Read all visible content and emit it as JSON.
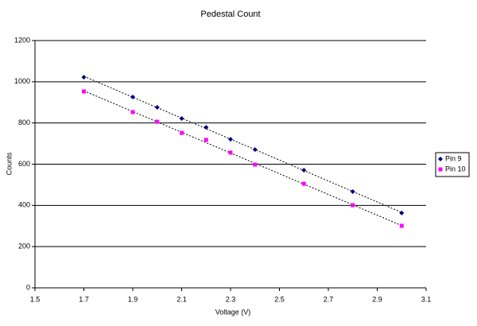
{
  "chart_data": {
    "type": "scatter",
    "title": "Pedestal Count",
    "x_label": "Voltage (V)",
    "y_label": "Counts",
    "xlim": [
      1.5,
      3.1
    ],
    "xticks": [
      1.5,
      1.7,
      1.9,
      2.1,
      2.3,
      2.5,
      2.7,
      2.9,
      3.1
    ],
    "ylim": [
      0,
      1200
    ],
    "yticks": [
      0,
      200,
      400,
      600,
      800,
      1000,
      1200
    ],
    "grid": true,
    "trendline": true,
    "legend": "right",
    "series": [
      {
        "name": "Pin 9",
        "color": "#000080",
        "marker": "diamond",
        "x": [
          1.7,
          1.9,
          2.0,
          2.1,
          2.2,
          2.3,
          2.4,
          2.6,
          2.8,
          3.0
        ],
        "values": [
          1022,
          926,
          876,
          822,
          779,
          721,
          671,
          571,
          467,
          363
        ]
      },
      {
        "name": "Pin 10",
        "color": "#ff00ff",
        "marker": "square",
        "x": [
          1.7,
          1.9,
          2.0,
          2.1,
          2.2,
          2.3,
          2.4,
          2.6,
          2.8,
          3.0
        ],
        "values": [
          953,
          853,
          806,
          752,
          718,
          656,
          598,
          505,
          401,
          301
        ]
      }
    ]
  }
}
